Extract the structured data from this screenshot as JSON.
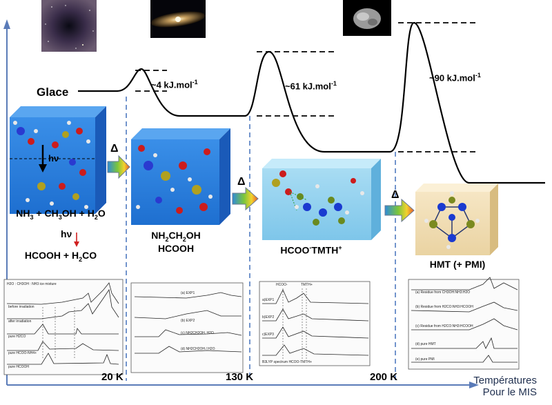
{
  "axis": {
    "x_title_line1": "Températures",
    "x_title_line2": "Pour le MIS",
    "ticks": [
      "20 K",
      "130 K",
      "200 K"
    ]
  },
  "energy": {
    "glace_label": "Glace",
    "barrier1": "~4 kJ.mol",
    "barrier2": "~61 kJ.mol",
    "barrier3": "~90 kJ.mol",
    "unit_sup": "-1"
  },
  "arrows": {
    "delta": "Δ"
  },
  "stages": {
    "s1": {
      "line1_a": "NH",
      "line1_b": " + CH",
      "line1_c": "OH + H",
      "line1_d": "O",
      "hv": "hν",
      "line3_a": "HCOOH + H",
      "line3_b": "CO",
      "sub3": "3",
      "sub2": "2",
      "mid_label": "hν"
    },
    "s2": {
      "line1": "NH",
      "line1_sub1": "2",
      "line1_b": "CH",
      "line1_sub2": "2",
      "line1_c": "OH",
      "line2": "HCOOH"
    },
    "s3": {
      "a": "HCOO",
      "sup1": "-",
      "b": "TMTH",
      "sup2": "+"
    },
    "s4": {
      "label": "HMT (+ PMI)"
    }
  },
  "spectra": {
    "p1": [
      "H2O : CH3OH : NH3 ice mixture",
      "before irradiation",
      "after irradiation",
      "pure H2CO",
      "pure HCOO-NH4+",
      "pure HCOOH"
    ],
    "p2": [
      "(a) EXP1",
      "(b) EXP2",
      "(c) NH2CH2OH, H2O",
      "(d) NH2CH2OH / H2O"
    ],
    "p3": [
      "HCOO-",
      "TMTH+",
      "a)EXP1",
      "b)EXP2",
      "c)EXP3",
      "B3LYP spectrum HCOO-TMTH+"
    ],
    "p4": [
      "(a) Residue from CH3OH:NH3:H2O",
      "(b) Residue from H2CO:NH3:HCOOH",
      "(c) Residue from H2CO:NH3:HCOOH",
      "(d) pure HMT",
      "(e) pure PMI"
    ]
  }
}
